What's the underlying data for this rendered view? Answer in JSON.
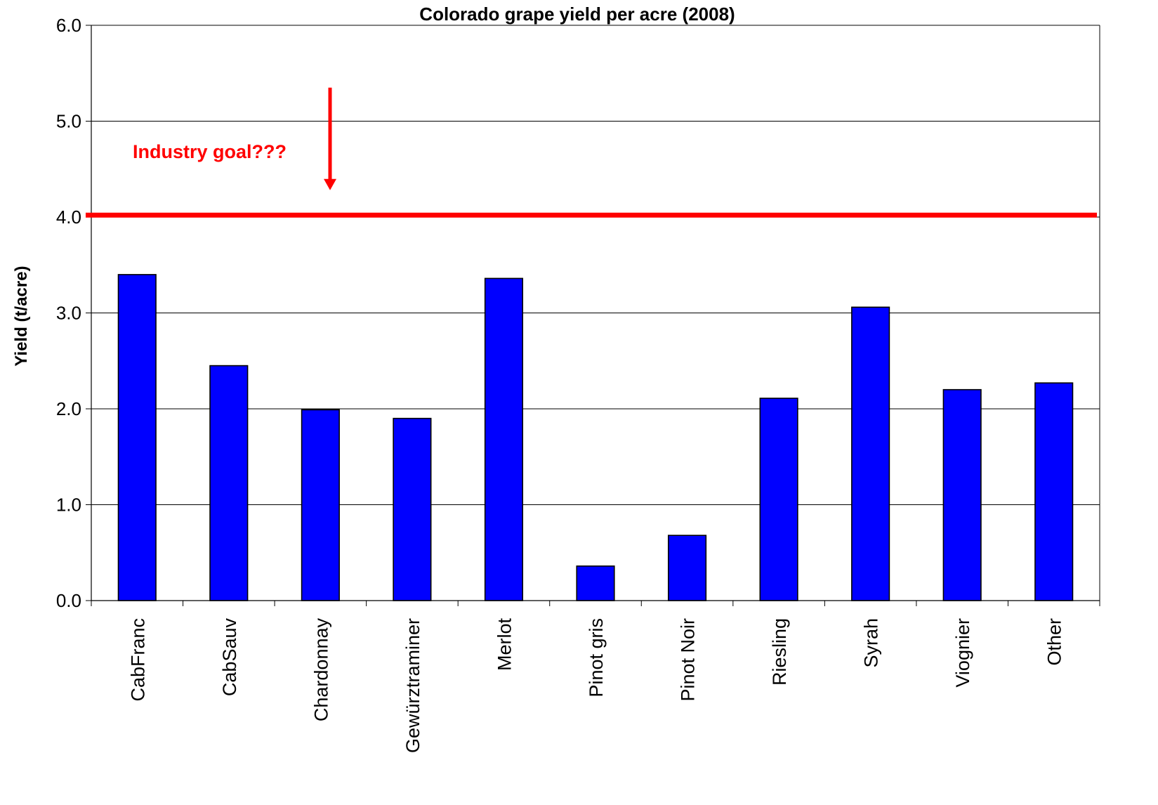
{
  "chart_data": {
    "type": "bar",
    "title": "Colorado grape yield per acre (2008)",
    "xlabel": "",
    "ylabel": "Yield (t/acre)",
    "ylim": [
      0,
      6
    ],
    "yticks": [
      "0.0",
      "1.0",
      "2.0",
      "3.0",
      "4.0",
      "5.0",
      "6.0"
    ],
    "grid": true,
    "categories": [
      "CabFranc",
      "CabSauv",
      "Chardonnay",
      "Gewürztraminer",
      "Merlot",
      "Pinot gris",
      "Pinot Noir",
      "Riesling",
      "Syrah",
      "Viognier",
      "Other"
    ],
    "values": [
      3.4,
      2.45,
      1.99,
      1.9,
      3.36,
      0.36,
      0.68,
      2.11,
      3.06,
      2.2,
      2.27
    ],
    "bar_color": "#0000ff",
    "reference_line": {
      "value": 4.02,
      "color": "#ff0000"
    },
    "annotation": {
      "text": "Industry goal???",
      "color": "#ff0000",
      "arrow_from": 5.35,
      "arrow_to": 4.28
    }
  }
}
